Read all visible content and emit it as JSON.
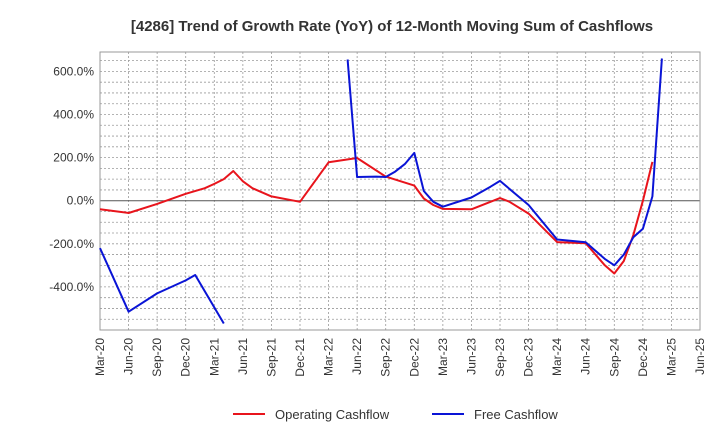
{
  "chart_data": {
    "type": "line",
    "title": "[4286]  Trend of Growth Rate (YoY) of 12-Month Moving Sum of Cashflows",
    "xlabel": "",
    "ylabel": "",
    "x_tick_labels": [
      "Mar-20",
      "Jun-20",
      "Sep-20",
      "Dec-20",
      "Mar-21",
      "Jun-21",
      "Sep-21",
      "Dec-21",
      "Mar-22",
      "Jun-22",
      "Sep-22",
      "Dec-22",
      "Mar-23",
      "Jun-23",
      "Sep-23",
      "Dec-23",
      "Mar-24",
      "Jun-24",
      "Sep-24",
      "Dec-24",
      "Mar-25",
      "Jun-25"
    ],
    "y_ticks": [
      -400,
      -200,
      0,
      200,
      400,
      600
    ],
    "y_tick_labels": [
      "-400.0%",
      "-200.0%",
      "0.0%",
      "200.0%",
      "400.0%",
      "600.0%"
    ],
    "ylim": [
      -600,
      690
    ],
    "grid": true,
    "legend_position": "bottom",
    "series": [
      {
        "name": "Operating Cashflow",
        "color": "#e8141c",
        "points": [
          [
            "Mar-20",
            -40
          ],
          [
            "Jun-20",
            -57
          ],
          [
            "Sep-20",
            -15
          ],
          [
            "Dec-20",
            32
          ],
          [
            "Feb-21",
            58
          ],
          [
            "Mar-21",
            78
          ],
          [
            "Apr-21",
            100
          ],
          [
            "May-21",
            138
          ],
          [
            "Jun-21",
            90
          ],
          [
            "Jul-21",
            58
          ],
          [
            "Sep-21",
            20
          ],
          [
            "Dec-21",
            -5
          ],
          [
            "Mar-22",
            178
          ],
          [
            "Jun-22",
            198
          ],
          [
            "Sep-22",
            112
          ],
          [
            "Dec-22",
            70
          ],
          [
            "Jan-23",
            10
          ],
          [
            "Feb-23",
            -20
          ],
          [
            "Mar-23",
            -38
          ],
          [
            "Jun-23",
            -40
          ],
          [
            "Aug-23",
            -5
          ],
          [
            "Sep-23",
            12
          ],
          [
            "Oct-23",
            -5
          ],
          [
            "Dec-23",
            -60
          ],
          [
            "Mar-24",
            -192
          ],
          [
            "Jun-24",
            -197
          ],
          [
            "Aug-24",
            -300
          ],
          [
            "Sep-24",
            -338
          ],
          [
            "Oct-24",
            -280
          ],
          [
            "Nov-24",
            -160
          ],
          [
            "Dec-24",
            0
          ],
          [
            "Jan-25",
            180
          ]
        ]
      },
      {
        "name": "Free Cashflow",
        "color": "#0a14d6",
        "segments": [
          [
            [
              "Mar-20",
              -220
            ],
            [
              "Jun-20",
              -515
            ],
            [
              "Sep-20",
              -430
            ],
            [
              "Dec-20",
              -370
            ],
            [
              "Jan-21",
              -345
            ],
            [
              "Apr-21",
              -570
            ]
          ],
          [
            [
              "May-22",
              655
            ],
            [
              "Jun-22",
              110
            ],
            [
              "Aug-22",
              112
            ],
            [
              "Sep-22",
              110
            ],
            [
              "Oct-22",
              135
            ],
            [
              "Nov-22",
              170
            ],
            [
              "Dec-22",
              222
            ],
            [
              "Jan-23",
              45
            ],
            [
              "Feb-23",
              -5
            ],
            [
              "Mar-23",
              -28
            ],
            [
              "Jun-23",
              15
            ],
            [
              "Aug-23",
              65
            ],
            [
              "Sep-23",
              92
            ],
            [
              "Dec-23",
              -20
            ],
            [
              "Mar-24",
              -180
            ],
            [
              "Jun-24",
              -193
            ],
            [
              "Aug-24",
              -270
            ],
            [
              "Sep-24",
              -300
            ],
            [
              "Oct-24",
              -250
            ],
            [
              "Nov-24",
              -170
            ],
            [
              "Dec-24",
              -130
            ],
            [
              "Jan-25",
              20
            ],
            [
              "Feb-25",
              660
            ]
          ]
        ]
      }
    ]
  }
}
